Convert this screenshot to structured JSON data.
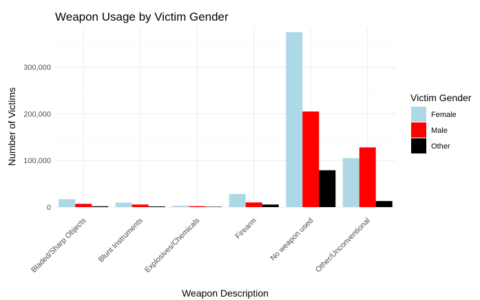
{
  "chart_data": {
    "type": "bar",
    "title": "Weapon Usage by Victim Gender",
    "xlabel": "Weapon Description",
    "ylabel": "Number of Victims",
    "categories": [
      "Bladed/Sharp Objects",
      "Blunt Instruments",
      "Explosives/Chemicals",
      "Firearm",
      "No weapon used",
      "Other/Unconventional"
    ],
    "series": [
      {
        "name": "Female",
        "color": "#add8e6",
        "values": [
          17000,
          9500,
          3000,
          28000,
          375000,
          105000
        ]
      },
      {
        "name": "Male",
        "color": "#ff0000",
        "values": [
          7000,
          5500,
          2000,
          10000,
          205000,
          128000
        ]
      },
      {
        "name": "Other",
        "color": "#000000",
        "values": [
          1800,
          1500,
          800,
          5500,
          79000,
          13000
        ]
      }
    ],
    "y_ticks": [
      0,
      100000,
      200000,
      300000
    ],
    "y_tick_labels": [
      "0",
      "100,000",
      "200,000",
      "300,000"
    ],
    "ylim": [
      0,
      385000
    ],
    "grid": true,
    "legend": {
      "title": "Victim Gender",
      "position": "right"
    }
  }
}
